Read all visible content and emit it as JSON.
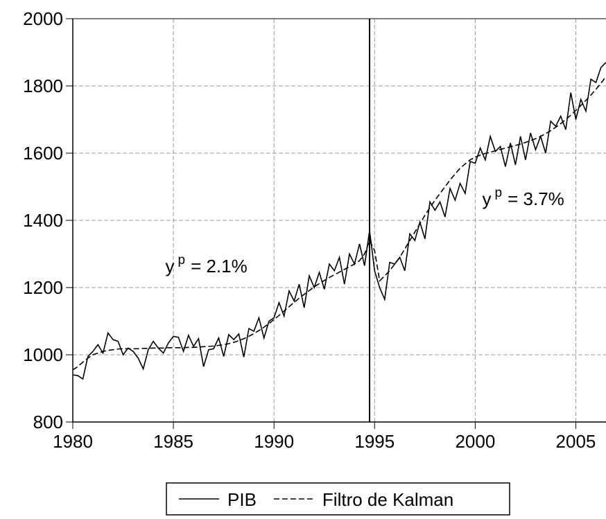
{
  "chart_data": {
    "type": "line",
    "x": [
      1980,
      1980.25,
      1980.5,
      1980.75,
      1981,
      1981.25,
      1981.5,
      1981.75,
      1982,
      1982.25,
      1982.5,
      1982.75,
      1983,
      1983.25,
      1983.5,
      1983.75,
      1984,
      1984.25,
      1984.5,
      1984.75,
      1985,
      1985.25,
      1985.5,
      1985.75,
      1986,
      1986.25,
      1986.5,
      1986.75,
      1987,
      1987.25,
      1987.5,
      1987.75,
      1988,
      1988.25,
      1988.5,
      1988.75,
      1989,
      1989.25,
      1989.5,
      1989.75,
      1990,
      1990.25,
      1990.5,
      1990.75,
      1991,
      1991.25,
      1991.5,
      1991.75,
      1992,
      1992.25,
      1992.5,
      1992.75,
      1993,
      1993.25,
      1993.5,
      1993.75,
      1994,
      1994.25,
      1994.5,
      1994.75,
      1995,
      1995.25,
      1995.5,
      1995.75,
      1996,
      1996.25,
      1996.5,
      1996.75,
      1997,
      1997.25,
      1997.5,
      1997.75,
      1998,
      1998.25,
      1998.5,
      1998.75,
      1999,
      1999.25,
      1999.5,
      1999.75,
      2000,
      2000.25,
      2000.5,
      2000.75,
      2001,
      2001.25,
      2001.5,
      2001.75,
      2002,
      2002.25,
      2002.5,
      2002.75,
      2003,
      2003.25,
      2003.5,
      2003.75,
      2004,
      2004.25,
      2004.5,
      2004.75,
      2005,
      2005.25,
      2005.5,
      2005.75,
      2006,
      2006.25,
      2006.5
    ],
    "series": [
      {
        "name": "PIB",
        "color": "#000000",
        "dash": "solid",
        "values": [
          940,
          938,
          928,
          995,
          1010,
          1030,
          1005,
          1065,
          1045,
          1040,
          1000,
          1020,
          1010,
          990,
          958,
          1015,
          1040,
          1020,
          1005,
          1035,
          1055,
          1052,
          1010,
          1058,
          1025,
          1048,
          965,
          1015,
          1018,
          1050,
          995,
          1060,
          1045,
          1062,
          993,
          1078,
          1070,
          1110,
          1050,
          1100,
          1110,
          1155,
          1115,
          1190,
          1160,
          1210,
          1140,
          1235,
          1200,
          1245,
          1195,
          1270,
          1250,
          1290,
          1210,
          1300,
          1270,
          1330,
          1265,
          1370,
          1250,
          1200,
          1165,
          1275,
          1270,
          1290,
          1250,
          1360,
          1340,
          1395,
          1345,
          1455,
          1430,
          1455,
          1410,
          1495,
          1460,
          1510,
          1480,
          1575,
          1570,
          1615,
          1580,
          1650,
          1605,
          1620,
          1560,
          1630,
          1565,
          1650,
          1580,
          1660,
          1610,
          1650,
          1600,
          1695,
          1680,
          1710,
          1670,
          1780,
          1700,
          1760,
          1725,
          1820,
          1810,
          1855,
          1870
        ]
      },
      {
        "name": "Filtro de Kalman",
        "color": "#000000",
        "dash": "dashed",
        "values": [
          955,
          965,
          978,
          990,
          1000,
          1005,
          1010,
          1013,
          1015,
          1017,
          1018,
          1018,
          1018,
          1018,
          1019,
          1019,
          1020,
          1020,
          1020,
          1021,
          1021,
          1021,
          1021,
          1022,
          1022,
          1023,
          1024,
          1025,
          1026,
          1028,
          1030,
          1033,
          1037,
          1042,
          1048,
          1055,
          1063,
          1072,
          1082,
          1093,
          1105,
          1117,
          1130,
          1143,
          1156,
          1168,
          1180,
          1191,
          1202,
          1212,
          1221,
          1230,
          1238,
          1246,
          1254,
          1262,
          1270,
          1280,
          1300,
          1340,
          1310,
          1220,
          1235,
          1250,
          1270,
          1290,
          1315,
          1340,
          1365,
          1390,
          1415,
          1438,
          1460,
          1480,
          1500,
          1520,
          1538,
          1555,
          1568,
          1580,
          1588,
          1594,
          1599,
          1603,
          1607,
          1611,
          1615,
          1619,
          1623,
          1627,
          1632,
          1637,
          1643,
          1650,
          1658,
          1667,
          1677,
          1688,
          1700,
          1713,
          1727,
          1742,
          1757,
          1773,
          1790,
          1808,
          1828
        ]
      }
    ],
    "xlim": [
      1980,
      2006.5
    ],
    "xticks": [
      1980,
      1985,
      1990,
      1995,
      2000,
      2005
    ],
    "ylim": [
      800,
      2000
    ],
    "yticks": [
      800,
      1000,
      1200,
      1400,
      1600,
      1800,
      2000
    ],
    "grid": true,
    "vline": 1994.75,
    "legend": "bottom",
    "annotations": [
      {
        "base": "y",
        "sup": "p",
        "text": "= 2.1%",
        "x": 1984.6,
        "y": 1245
      },
      {
        "base": "y",
        "sup": "p",
        "text": "= 3.7%",
        "x": 2000.35,
        "y": 1445
      }
    ]
  }
}
